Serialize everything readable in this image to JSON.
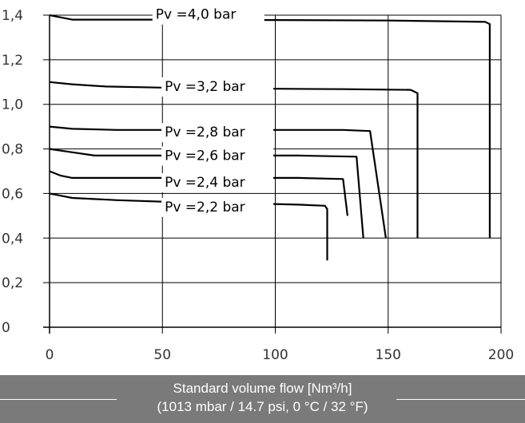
{
  "chart_data": {
    "type": "line",
    "xlabel": "Standard volume flow [Nm³/h]",
    "xlabel_note": "(1013 mbar / 14.7 psi, 0 °C / 32 °F)",
    "ylabel": "",
    "xlim": [
      0,
      200
    ],
    "ylim": [
      0,
      1.4
    ],
    "x_ticks": [
      "0",
      "50",
      "100",
      "150",
      "200"
    ],
    "y_ticks": [
      "0",
      "0,2",
      "0,4",
      "0,6",
      "0,8",
      "1,0",
      "1,2",
      "1,4"
    ],
    "grid": true,
    "series": [
      {
        "name": "Pv =4,0 bar",
        "label_x": 47,
        "label_y": 1.383,
        "x": [
          0,
          5,
          10,
          20,
          60,
          100,
          150,
          193,
          195,
          195
        ],
        "y": [
          1.4,
          1.39,
          1.38,
          1.38,
          1.38,
          1.378,
          1.376,
          1.37,
          1.36,
          0.4
        ]
      },
      {
        "name": "Pv =3,2 bar",
        "label_x": 51,
        "label_y": 1.06,
        "x": [
          0,
          10,
          25,
          50,
          100,
          130,
          160,
          163,
          163
        ],
        "y": [
          1.1,
          1.09,
          1.08,
          1.075,
          1.07,
          1.068,
          1.065,
          1.05,
          0.4
        ]
      },
      {
        "name": "Pv =2,8 bar",
        "label_x": 51,
        "label_y": 0.855,
        "x": [
          0,
          10,
          30,
          60,
          100,
          130,
          142,
          149
        ],
        "y": [
          0.9,
          0.89,
          0.885,
          0.885,
          0.885,
          0.885,
          0.88,
          0.4
        ]
      },
      {
        "name": "Pv =2,6 bar",
        "label_x": 51,
        "label_y": 0.75,
        "x": [
          0,
          10,
          20,
          50,
          80,
          110,
          136,
          139
        ],
        "y": [
          0.8,
          0.785,
          0.77,
          0.77,
          0.77,
          0.77,
          0.765,
          0.4
        ]
      },
      {
        "name": "Pv =2,4 bar",
        "label_x": 51,
        "label_y": 0.63,
        "x": [
          0,
          5,
          10,
          40,
          80,
          110,
          130,
          132
        ],
        "y": [
          0.7,
          0.68,
          0.67,
          0.67,
          0.67,
          0.67,
          0.665,
          0.5
        ]
      },
      {
        "name": "Pv =2,2 bar",
        "label_x": 51,
        "label_y": 0.52,
        "x": [
          0,
          5,
          10,
          30,
          60,
          90,
          110,
          122,
          123,
          123
        ],
        "y": [
          0.6,
          0.59,
          0.58,
          0.57,
          0.56,
          0.555,
          0.55,
          0.545,
          0.53,
          0.3
        ]
      }
    ]
  },
  "colors": {
    "line": "#000000",
    "grid": "#000000",
    "footer_bg": "#7a7a7a",
    "footer_text": "#ffffff"
  }
}
